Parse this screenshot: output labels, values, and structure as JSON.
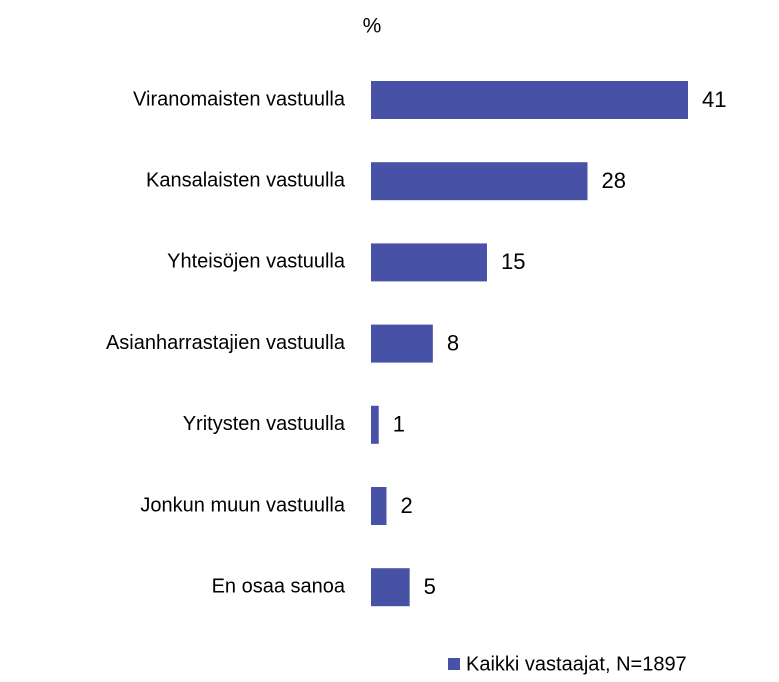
{
  "chart_data": {
    "type": "barh",
    "title": "%",
    "categories": [
      "Viranomaisten vastuulla",
      "Kansalaisten vastuulla",
      "Yhteisöjen vastuulla",
      "Asianharrastajien vastuulla",
      "Yritysten vastuulla",
      "Jonkun muun vastuulla",
      "En osaa sanoa"
    ],
    "series": [
      {
        "name": "Kaikki vastaajat, N=1897",
        "color": "#4752a6",
        "values": [
          41,
          28,
          15,
          8,
          1,
          2,
          5
        ]
      }
    ],
    "legend": "bottom-right"
  }
}
